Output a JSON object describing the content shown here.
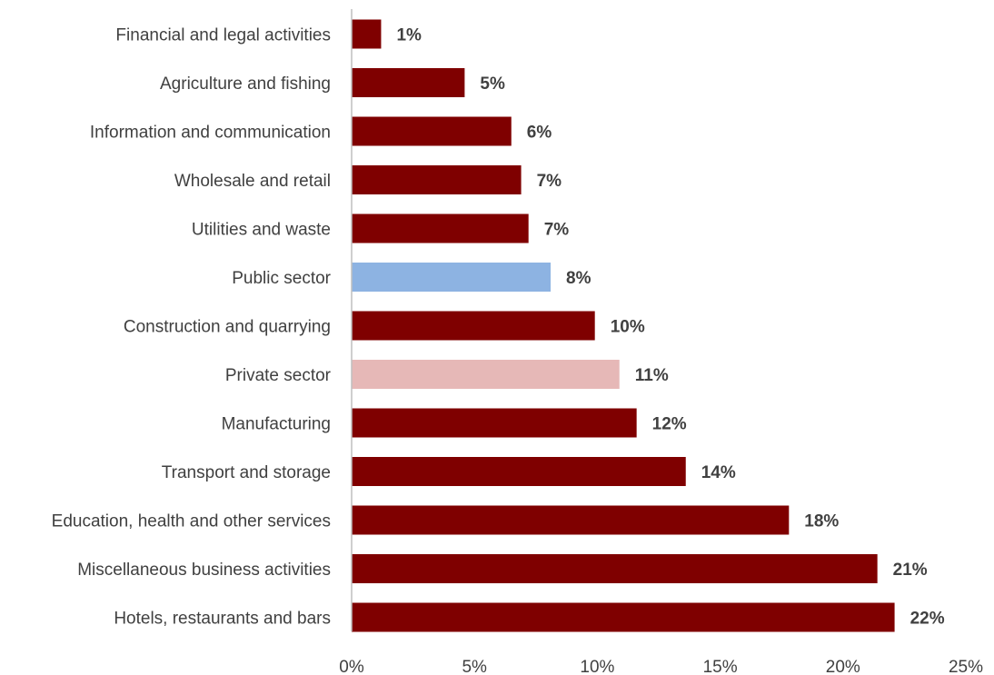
{
  "chart_data": {
    "type": "bar",
    "orientation": "horizontal",
    "categories": [
      "Financial and legal activities",
      "Agriculture and fishing",
      "Information and communication",
      "Wholesale and retail",
      "Utilities and waste",
      "Public sector",
      "Construction and quarrying",
      "Private sector",
      "Manufacturing",
      "Transport and storage",
      "Education, health and other services",
      "Miscellaneous business activities",
      "Hotels, restaurants and bars"
    ],
    "values": [
      1.2,
      4.6,
      6.5,
      6.9,
      7.2,
      8.1,
      9.9,
      10.9,
      11.6,
      13.6,
      17.8,
      21.4,
      22.1
    ],
    "data_labels": [
      "1%",
      "5%",
      "6%",
      "7%",
      "7%",
      "8%",
      "10%",
      "11%",
      "12%",
      "14%",
      "18%",
      "21%",
      "22%"
    ],
    "bar_colors": [
      "#7f0000",
      "#7f0000",
      "#7f0000",
      "#7f0000",
      "#7f0000",
      "#8db3e2",
      "#7f0000",
      "#e6b8b7",
      "#7f0000",
      "#7f0000",
      "#7f0000",
      "#7f0000",
      "#7f0000"
    ],
    "x_ticks": [
      "0%",
      "5%",
      "10%",
      "15%",
      "20%",
      "25%"
    ],
    "xlim": [
      0,
      25
    ],
    "title": "",
    "xlabel": "",
    "ylabel": "",
    "grid": false,
    "legend": false
  }
}
